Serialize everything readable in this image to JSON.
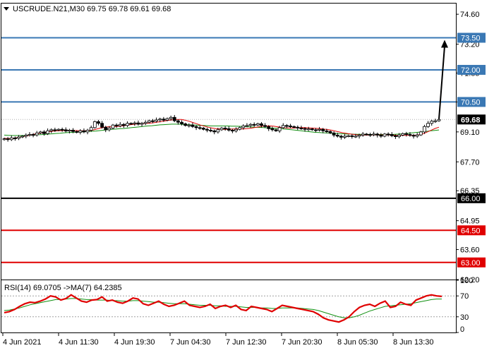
{
  "header": {
    "symbol_line": "USCRUDE.N21,M30  69.75 69.78 69.61 69.68",
    "menu_icon": "triangle-down-icon"
  },
  "rsi_header": {
    "label": "RSI(14) 69.0705  ->MA(7) 64.2385"
  },
  "colors": {
    "up_candle": "#ffffff",
    "down_candle": "#000000",
    "ma_fast": "#e00000",
    "ma_slow": "#109010",
    "resistance": "#3a78b4",
    "support": "#e00000",
    "pivot": "#000000",
    "rsi_line": "#e00000",
    "rsi_ma": "#109010"
  },
  "chart_data": [
    {
      "type": "candlestick",
      "title": "USCRUDE.N21,M30",
      "ylim": [
        62.2,
        75.1
      ],
      "y_ticks": [
        "74.60",
        "73.20",
        "71.85",
        "70.50",
        "69.10",
        "67.70",
        "66.35",
        "64.95",
        "63.60",
        "62.20"
      ],
      "x_ticks": [
        "4 Jun 2021",
        "4 Jun 11:30",
        "4 Jun 19:30",
        "7 Jun 04:30",
        "7 Jun 12:30",
        "7 Jun 20:30",
        "8 Jun 05:30",
        "8 Jun 13:30"
      ],
      "last_price": {
        "value": 69.68,
        "label": "69.68"
      },
      "levels": [
        {
          "value": 73.5,
          "label": "73.50",
          "kind": "resistance"
        },
        {
          "value": 72.0,
          "label": "72.00",
          "kind": "resistance"
        },
        {
          "value": 70.5,
          "label": "70.50",
          "kind": "resistance"
        },
        {
          "value": 66.0,
          "label": "66.00",
          "kind": "pivot"
        },
        {
          "value": 64.5,
          "label": "64.50",
          "kind": "support"
        },
        {
          "value": 63.0,
          "label": "63.00",
          "kind": "support"
        }
      ],
      "closes": [
        68.78,
        68.74,
        68.82,
        68.8,
        68.86,
        68.9,
        68.95,
        68.98,
        68.96,
        69.05,
        69.1,
        69.02,
        69.15,
        69.2,
        69.18,
        69.22,
        69.2,
        69.14,
        69.18,
        69.12,
        69.08,
        69.15,
        69.1,
        69.18,
        69.3,
        69.58,
        69.5,
        69.32,
        69.2,
        69.28,
        69.42,
        69.38,
        69.45,
        69.4,
        69.5,
        69.48,
        69.52,
        69.46,
        69.5,
        69.55,
        69.62,
        69.6,
        69.66,
        69.7,
        69.65,
        69.72,
        69.78,
        69.62,
        69.55,
        69.48,
        69.4,
        69.42,
        69.35,
        69.3,
        69.28,
        69.22,
        69.18,
        69.15,
        69.1,
        69.2,
        69.28,
        69.25,
        69.18,
        69.15,
        69.22,
        69.3,
        69.38,
        69.4,
        69.45,
        69.42,
        69.48,
        69.4,
        69.35,
        69.25,
        69.2,
        69.15,
        69.3,
        69.4,
        69.38,
        69.35,
        69.32,
        69.28,
        69.26,
        69.22,
        69.24,
        69.2,
        69.18,
        69.22,
        69.15,
        69.12,
        69.05,
        68.95,
        68.9,
        68.85,
        68.9,
        68.92,
        68.88,
        68.9,
        68.95,
        69.0,
        68.98,
        68.96,
        69.0,
        68.95,
        68.9,
        69.0,
        68.98,
        68.92,
        68.88,
        68.95,
        69.02,
        68.98,
        68.94,
        68.9,
        68.96,
        69.1,
        69.35,
        69.5,
        69.6,
        69.62,
        69.68
      ],
      "ma_fast": [
        68.8,
        68.79,
        68.8,
        68.82,
        68.85,
        68.88,
        68.92,
        68.96,
        69.0,
        69.03,
        69.06,
        69.09,
        69.12,
        69.14,
        69.15,
        69.16,
        69.17,
        69.17,
        69.17,
        69.16,
        69.15,
        69.15,
        69.16,
        69.18,
        69.23,
        69.28,
        69.32,
        69.34,
        69.34,
        69.35,
        69.37,
        69.39,
        69.42,
        69.44,
        69.46,
        69.48,
        69.49,
        69.5,
        69.51,
        69.53,
        69.56,
        69.59,
        69.62,
        69.65,
        69.67,
        69.68,
        69.68,
        69.65,
        69.6,
        69.54,
        69.48,
        69.42,
        69.37,
        69.32,
        69.28,
        69.25,
        69.23,
        69.22,
        69.22,
        69.23,
        69.24,
        69.24,
        69.24,
        69.25,
        69.27,
        69.3,
        69.33,
        69.36,
        69.38,
        69.38,
        69.37,
        69.34,
        69.31,
        69.29,
        69.28,
        69.28,
        69.29,
        69.3,
        69.3,
        69.29,
        69.28,
        69.27,
        69.25,
        69.23,
        69.21,
        69.18,
        69.14,
        69.1,
        69.06,
        69.03,
        69.0,
        68.98,
        68.96,
        68.95,
        68.95,
        68.95,
        68.96,
        68.96,
        68.96,
        68.96,
        68.96,
        68.95,
        68.94,
        68.94,
        68.94,
        68.94,
        68.94,
        68.95,
        68.97,
        69.02,
        69.1,
        69.18,
        69.26,
        69.32
      ],
      "ma_slow": [
        68.95,
        68.94,
        68.93,
        68.93,
        68.93,
        68.93,
        68.94,
        68.95,
        68.96,
        68.97,
        68.98,
        69.0,
        69.01,
        69.03,
        69.04,
        69.06,
        69.07,
        69.08,
        69.09,
        69.1,
        69.11,
        69.12,
        69.13,
        69.14,
        69.16,
        69.18,
        69.2,
        69.22,
        69.23,
        69.25,
        69.26,
        69.28,
        69.3,
        69.32,
        69.34,
        69.36,
        69.38,
        69.39,
        69.41,
        69.43,
        69.44,
        69.45,
        69.46,
        69.46,
        69.46,
        69.45,
        69.44,
        69.43,
        69.42,
        69.41,
        69.4,
        69.39,
        69.38,
        69.38,
        69.38,
        69.38,
        69.38,
        69.37,
        69.37,
        69.36,
        69.35,
        69.34,
        69.33,
        69.32,
        69.31,
        69.3,
        69.29,
        69.28,
        69.27,
        69.26,
        69.24,
        69.22,
        69.2,
        69.18,
        69.16,
        69.14,
        69.12,
        69.1,
        69.08,
        69.07,
        69.06,
        69.05,
        69.04,
        69.03,
        69.02,
        69.01,
        69.0,
        69.0,
        68.99,
        68.99,
        68.98,
        68.98,
        68.98,
        68.98,
        68.98,
        68.98,
        68.98,
        68.98,
        68.99,
        69.0,
        69.01,
        69.03,
        69.05,
        69.07,
        69.09,
        69.11,
        69.13,
        69.15,
        69.17,
        69.19
      ],
      "projection": {
        "from": 69.7,
        "to": 73.5
      }
    },
    {
      "type": "line",
      "title": "RSI(14) 69.0705  ->MA(7) 64.2385",
      "ylim": [
        0,
        100
      ],
      "y_ticks": [
        "100",
        "70",
        "30",
        "0"
      ],
      "levels": [
        70,
        30
      ],
      "rsi": [
        38,
        40,
        44,
        50,
        55,
        58,
        57,
        60,
        64,
        70,
        68,
        62,
        65,
        72,
        66,
        60,
        58,
        62,
        63,
        68,
        60,
        62,
        58,
        56,
        60,
        66,
        64,
        55,
        52,
        56,
        60,
        54,
        50,
        52,
        56,
        60,
        52,
        50,
        48,
        50,
        54,
        46,
        50,
        52,
        48,
        52,
        44,
        42,
        50,
        48,
        46,
        44,
        40,
        46,
        52,
        50,
        48,
        46,
        44,
        42,
        40,
        35,
        28,
        24,
        22,
        20,
        24,
        30,
        40,
        48,
        52,
        54,
        50,
        56,
        60,
        48,
        50,
        58,
        54,
        52,
        62,
        66,
        70,
        72,
        70,
        69
      ],
      "rsi_ma": [
        42,
        43,
        45,
        47,
        50,
        53,
        55,
        57,
        59,
        61,
        63,
        63,
        64,
        65,
        65,
        64,
        63,
        63,
        62,
        62,
        62,
        61,
        61,
        60,
        60,
        61,
        61,
        60,
        59,
        58,
        58,
        57,
        56,
        55,
        55,
        55,
        54,
        53,
        52,
        52,
        52,
        51,
        51,
        50,
        50,
        50,
        49,
        48,
        48,
        48,
        47,
        47,
        46,
        46,
        47,
        47,
        47,
        47,
        46,
        45,
        44,
        42,
        39,
        36,
        33,
        30,
        28,
        28,
        30,
        33,
        37,
        41,
        44,
        47,
        50,
        51,
        52,
        53,
        54,
        55,
        57,
        59,
        61,
        63,
        64,
        64
      ]
    }
  ]
}
